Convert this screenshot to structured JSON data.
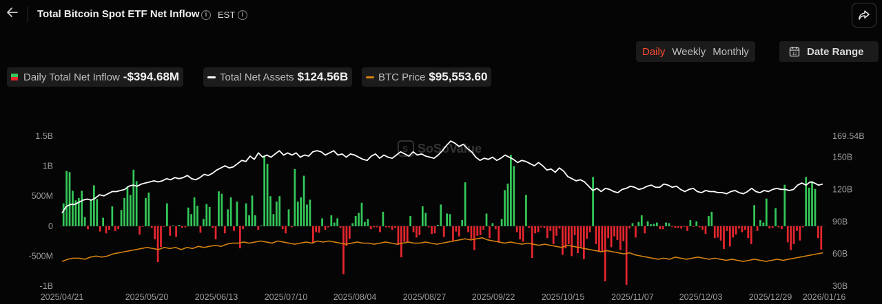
{
  "header": {
    "title": "Total Bitcoin Spot ETF Net Inflow",
    "timezone": "EST"
  },
  "period_tabs": [
    "Daily",
    "Weekly",
    "Monthly"
  ],
  "active_period": "Daily",
  "date_range_label": "Date Range",
  "legend": [
    {
      "name": "Daily Total Net Inflow",
      "value": "-$394.68M"
    },
    {
      "name": "Total Net Assets",
      "value": "$124.56B"
    },
    {
      "name": "BTC Price",
      "value": "$95,553.60"
    }
  ],
  "watermark": "SoSoValue",
  "colors": {
    "positive": "#34c759",
    "negative": "#e5262e",
    "assets_line": "#ffffff",
    "btc_line": "#d6820f",
    "active_tab": "#ff4d2e"
  },
  "chart_data": {
    "type": "bar",
    "x_ticks": [
      "2025/04/21",
      "2025/05/20",
      "2025/06/13",
      "2025/07/10",
      "2025/08/04",
      "2025/08/27",
      "2025/09/22",
      "2025/10/15",
      "2025/11/07",
      "2025/12/03",
      "2025/12/29",
      "2026/01/16"
    ],
    "left_axis": {
      "ticks": [
        "1.5B",
        "1B",
        "500M",
        "0",
        "-500M",
        "-1B"
      ],
      "range": [
        -1000,
        1500
      ],
      "unit": "M"
    },
    "right_axis": {
      "ticks": [
        "169.54B",
        "150B",
        "120B",
        "90B",
        "60B",
        "30B"
      ],
      "range": [
        30,
        169.54
      ],
      "unit": "B"
    },
    "series": [
      {
        "name": "Daily Total Net Inflow",
        "kind": "bar",
        "values": [
          380,
          920,
          900,
          590,
          430,
          470,
          590,
          150,
          -50,
          430,
          680,
          450,
          -90,
          140,
          -120,
          -60,
          330,
          -80,
          -50,
          270,
          470,
          660,
          520,
          940,
          750,
          -140,
          -10,
          470,
          560,
          -30,
          -220,
          -600,
          -350,
          -10,
          380,
          -160,
          10,
          -180,
          20,
          -30,
          -20,
          310,
          200,
          480,
          340,
          -110,
          120,
          370,
          320,
          -30,
          -220,
          580,
          540,
          -120,
          280,
          480,
          -80,
          410,
          -370,
          -50,
          380,
          180,
          510,
          180,
          -60,
          10,
          1180,
          1040,
          500,
          200,
          410,
          500,
          -50,
          -120,
          280,
          -20,
          950,
          410,
          480,
          840,
          360,
          440,
          -290,
          -100,
          -110,
          130,
          -60,
          -20,
          180,
          60,
          130,
          -30,
          -800,
          -330,
          -210,
          50,
          170,
          220,
          390,
          70,
          120,
          -50,
          -20,
          -20,
          -100,
          240,
          -20,
          -20,
          -60,
          -30,
          -310,
          -520,
          -260,
          -260,
          170,
          -100,
          -190,
          -150,
          330,
          220,
          -20,
          -130,
          -120,
          20,
          360,
          -180,
          210,
          200,
          -250,
          -90,
          -170,
          100,
          730,
          -100,
          -210,
          -400,
          -160,
          -150,
          -60,
          210,
          -200,
          50,
          -50,
          -260,
          120,
          600,
          710,
          1190,
          1000,
          -100,
          -220,
          -260,
          520,
          -30,
          -530,
          -120,
          -100,
          -20,
          -30,
          -200,
          -80,
          -300,
          -160,
          -40,
          -480,
          -370,
          -300,
          -500,
          -150,
          -450,
          -360,
          -550,
          -210,
          -100,
          820,
          -300,
          -420,
          -430,
          -920,
          -200,
          -350,
          -170,
          -230,
          -400,
          -250,
          -980,
          -40,
          50,
          -190,
          70,
          180,
          -120,
          80,
          30,
          40,
          60,
          -50,
          -50,
          60,
          50,
          -10,
          -30,
          -30,
          -40,
          -10,
          -80,
          100,
          -10,
          80,
          -20,
          -60,
          -130,
          170,
          240,
          -200,
          -190,
          -240,
          -380,
          -80,
          -340,
          -190,
          -140,
          -40,
          -100,
          -60,
          -200,
          -300,
          350,
          -80,
          100,
          60,
          460,
          -40,
          -30,
          300,
          -20,
          -50,
          690,
          -270,
          -400,
          -300,
          -80,
          -240,
          -20,
          820,
          640,
          750,
          620,
          -200,
          -390
        ],
        "colors_by_sign": true
      },
      {
        "name": "Total Net Assets",
        "kind": "line",
        "axis": "right",
        "values": [
          98,
          104,
          106,
          106,
          108,
          110,
          111,
          110,
          112,
          115,
          114,
          116,
          118,
          118,
          119,
          120,
          123,
          124,
          123,
          125,
          126,
          127,
          128,
          127,
          128,
          130,
          129,
          131,
          130,
          131,
          133,
          130,
          129,
          131,
          134,
          133,
          135,
          138,
          140,
          142,
          140,
          141,
          144,
          147,
          146,
          151,
          148,
          154,
          150,
          152,
          150,
          153,
          156,
          152,
          154,
          152,
          154,
          150,
          152,
          151,
          155,
          156,
          155,
          152,
          154,
          156,
          152,
          153,
          150,
          153,
          152,
          150,
          148,
          147,
          151,
          153,
          149,
          152,
          150,
          149,
          152,
          155,
          153,
          151,
          155,
          152,
          153,
          151,
          150,
          149,
          152,
          156,
          161,
          165,
          163,
          160,
          162,
          158,
          155,
          150,
          147,
          149,
          148,
          150,
          147,
          149,
          152,
          150,
          148,
          145,
          147,
          146,
          144,
          142,
          145,
          142,
          138,
          139,
          136,
          140,
          137,
          132,
          130,
          128,
          129,
          127,
          123,
          119,
          121,
          118,
          121,
          120,
          118,
          117,
          120,
          121,
          123,
          122,
          120,
          121,
          123,
          124,
          122,
          122,
          125,
          124,
          122,
          123,
          120,
          118,
          120,
          121,
          118,
          117,
          119,
          118,
          118,
          117,
          117,
          116,
          118,
          119,
          117,
          116,
          118,
          121,
          118,
          117,
          119,
          118,
          120,
          121,
          120,
          120,
          119,
          120,
          124,
          126,
          124,
          127,
          126,
          124,
          125
        ],
        "indexed": true
      },
      {
        "name": "BTC Price",
        "kind": "line",
        "axis": "right",
        "values": [
          53,
          55,
          56,
          56,
          55,
          57,
          58,
          57,
          58,
          60,
          61,
          62,
          63,
          64,
          65,
          66,
          65,
          64,
          66,
          65,
          66,
          64,
          66,
          65,
          67,
          66,
          67,
          68,
          67,
          69,
          70,
          70,
          71,
          70,
          71,
          72,
          71,
          70,
          72,
          71,
          70,
          69,
          70,
          71,
          70,
          72,
          71,
          72,
          71,
          70,
          69,
          70,
          71,
          70,
          70,
          69,
          70,
          71,
          70,
          69,
          70,
          71,
          70,
          70,
          71,
          70,
          69,
          70,
          71,
          72,
          73,
          74,
          73,
          74,
          75,
          73,
          72,
          71,
          70,
          71,
          70,
          69,
          70,
          69,
          68,
          69,
          68,
          67,
          66,
          68,
          67,
          66,
          65,
          64,
          63,
          62,
          63,
          62,
          61,
          60,
          61,
          59,
          58,
          57,
          56,
          55,
          56,
          55,
          57,
          56,
          55,
          56,
          57,
          56,
          55,
          56,
          55,
          54,
          55,
          54,
          53,
          54,
          55,
          54,
          53,
          54,
          55,
          54,
          55,
          56,
          57,
          58,
          59,
          60,
          61
        ],
        "indexed": true
      }
    ]
  }
}
